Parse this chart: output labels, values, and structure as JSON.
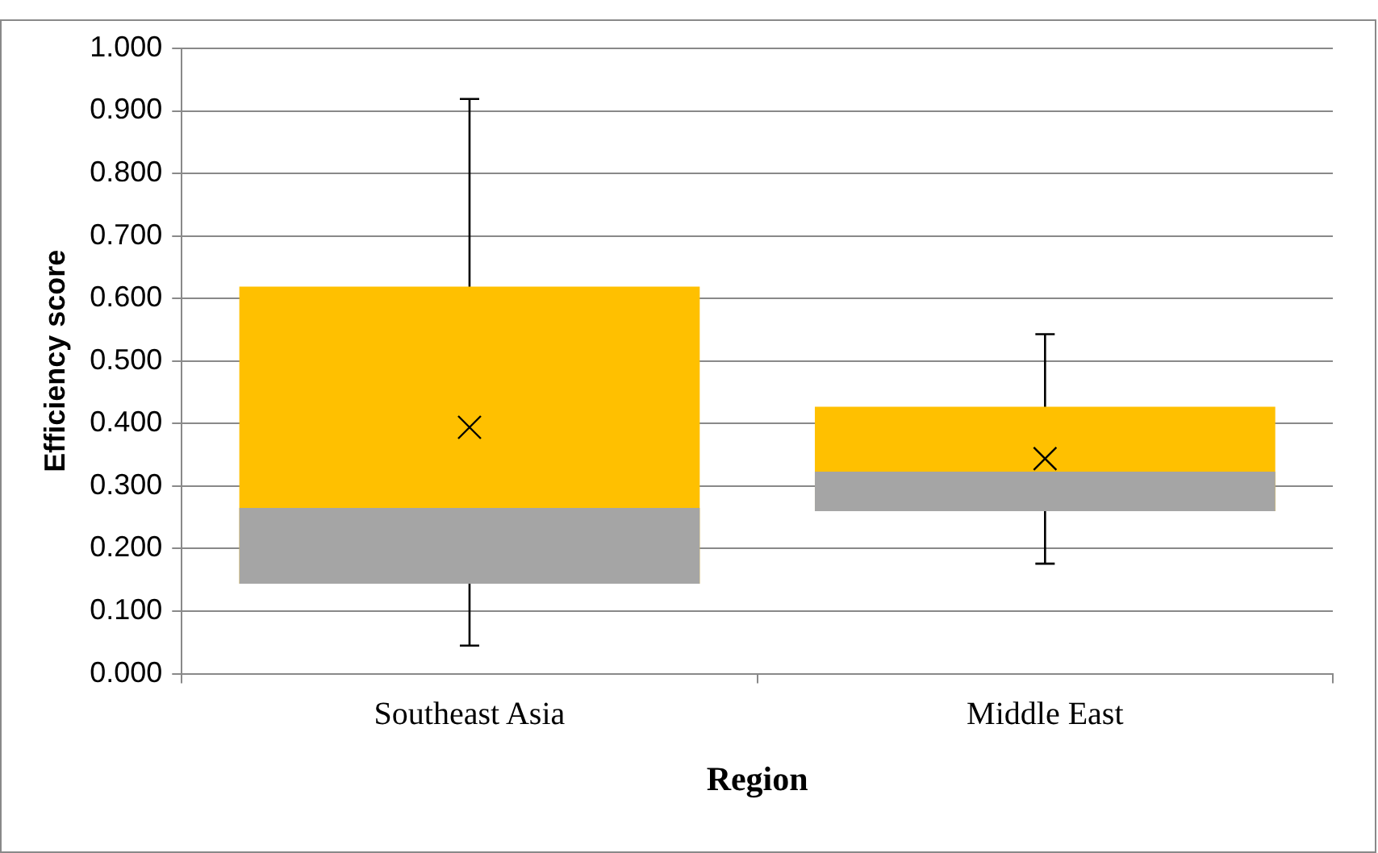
{
  "chart_data": {
    "type": "box",
    "xlabel": "Region",
    "ylabel": "Efficiency score",
    "categories": [
      "Southeast Asia",
      "Middle East"
    ],
    "series": [
      {
        "color": "#ffc000",
        "boxes": [
          {
            "low": 0.045,
            "q1": 0.144,
            "median": 0.265,
            "q3": 0.619,
            "high": 0.919,
            "mean": 0.394
          },
          {
            "low": 0.176,
            "q1": 0.26,
            "median": 0.323,
            "q3": 0.427,
            "high": 0.543,
            "mean": 0.344
          }
        ]
      }
    ],
    "ylim": [
      0,
      1
    ],
    "yticks": [
      {
        "value": 0,
        "label": "0.000"
      },
      {
        "value": 0.1,
        "label": "0.100"
      },
      {
        "value": 0.2,
        "label": "0.200"
      },
      {
        "value": 0.3,
        "label": "0.300"
      },
      {
        "value": 0.4,
        "label": "0.400"
      },
      {
        "value": 0.5,
        "label": "0.500"
      },
      {
        "value": 0.6,
        "label": "0.600"
      },
      {
        "value": 0.7,
        "label": "0.700"
      },
      {
        "value": 0.8,
        "label": "0.800"
      },
      {
        "value": 0.9,
        "label": "0.900"
      },
      {
        "value": 1,
        "label": "1.000"
      }
    ],
    "grid": "y",
    "legend": false
  }
}
